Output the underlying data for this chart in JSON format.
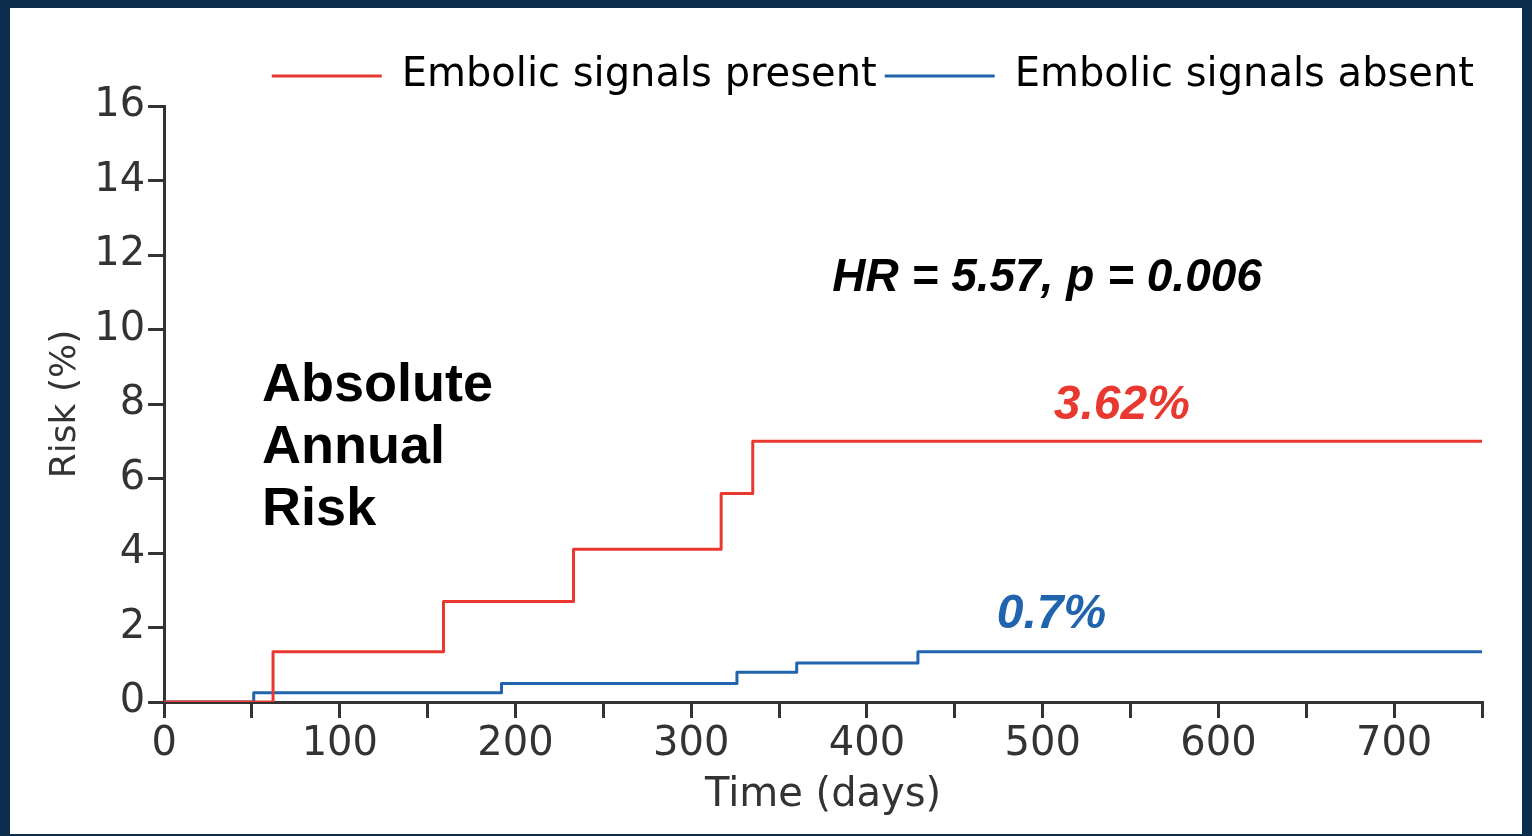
{
  "chart_data": {
    "type": "step",
    "xlabel": "Time (days)",
    "ylabel": "Risk (%)",
    "xlim": [
      0,
      750
    ],
    "ylim": [
      0,
      16
    ],
    "xticks": [
      0,
      {
        "value": 50,
        "label": null
      },
      100,
      {
        "value": 150,
        "label": null
      },
      200,
      {
        "value": 250,
        "label": null
      },
      300,
      {
        "value": 350,
        "label": null
      },
      400,
      {
        "value": 450,
        "label": null
      },
      500,
      {
        "value": 550,
        "label": null
      },
      600,
      {
        "value": 650,
        "label": null
      },
      700,
      {
        "value": 750,
        "label": null
      }
    ],
    "yticks": [
      0,
      2,
      4,
      6,
      8,
      10,
      12,
      14,
      16
    ],
    "grid": false,
    "legend": "top right",
    "marker": "none",
    "line_style": "solid",
    "series": [
      {
        "name": "Embolic signals present",
        "color": "#e8382f",
        "x": [
          0,
          62,
          159,
          233,
          317,
          335,
          750
        ],
        "values": [
          0,
          1.35,
          2.7,
          4.1,
          5.6,
          7.0,
          7.0
        ]
      },
      {
        "name": "Embolic signals absent",
        "color": "#1f64ad",
        "x": [
          0,
          51,
          192,
          326,
          360,
          429,
          750
        ],
        "values": [
          0,
          0.25,
          0.5,
          0.8,
          1.05,
          1.35,
          1.35
        ]
      }
    ],
    "annotations": [
      "HR = 5.57, p = 0.006",
      "Absolute Annual Risk",
      "3.62%",
      "0.7%"
    ]
  }
}
